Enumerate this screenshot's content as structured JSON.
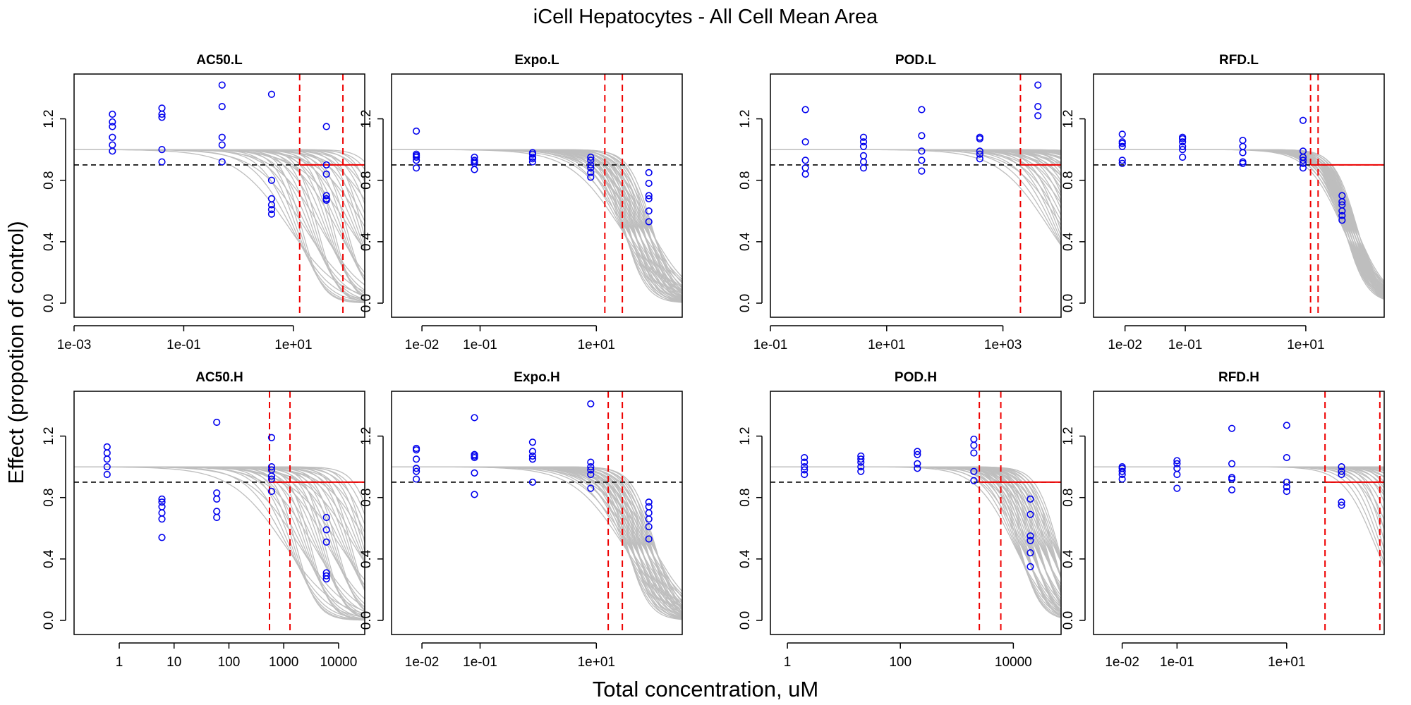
{
  "title": "iCell Hepatocytes -  All Cell Mean Area",
  "xlabel": "Total concentration, uM",
  "ylabel": "Effect (propotion of control)",
  "colors": {
    "points": "#0000ee",
    "curves": "#bebebe",
    "threshold": "#000000",
    "estimate": "#ee0000"
  },
  "chart_data": [
    {
      "type": "scatter",
      "panel": "AC50.L",
      "title": "AC50.L",
      "x_scale": "log",
      "xlim": [
        0.001,
        200
      ],
      "ylim": [
        0,
        1.4
      ],
      "x_ticks": [
        0.001,
        0.1,
        10
      ],
      "x_tick_labels": [
        "1e-03",
        "1e-01",
        "1e+01"
      ],
      "y_ticks": [
        0,
        0.4,
        0.8,
        1.2
      ],
      "y_tick_labels": [
        "0.0",
        "0.4",
        "0.8",
        "1.2"
      ],
      "threshold": 0.9,
      "vlines": [
        13,
        80
      ],
      "hline_from": 13,
      "curves": {
        "lo": [
          8,
          0.9
        ],
        "hi": [
          600,
          2.5
        ]
      },
      "points": [
        {
          "x": 0.005,
          "y": [
            0.99,
            1.03,
            1.08,
            1.15,
            1.18,
            1.23
          ]
        },
        {
          "x": 0.04,
          "y": [
            0.92,
            1.0,
            1.21,
            1.23,
            1.27
          ]
        },
        {
          "x": 0.5,
          "y": [
            0.92,
            1.03,
            1.08,
            1.28,
            1.42
          ]
        },
        {
          "x": 4,
          "y": [
            0.58,
            0.61,
            0.64,
            0.68,
            0.8,
            1.36
          ]
        },
        {
          "x": 40,
          "y": [
            0.67,
            0.68,
            0.7,
            0.84,
            0.9,
            1.15
          ]
        }
      ]
    },
    {
      "type": "scatter",
      "panel": "Expo.L",
      "title": "Expo.L",
      "x_scale": "log",
      "xlim": [
        0.003,
        300
      ],
      "ylim": [
        0,
        1.4
      ],
      "x_ticks": [
        0.01,
        0.1,
        10
      ],
      "x_tick_labels": [
        "1e-02",
        "1e-01",
        "1e+01"
      ],
      "y_ticks": [
        0,
        0.4,
        0.8,
        1.2
      ],
      "y_tick_labels": [
        "0.0",
        "0.4",
        "0.8",
        "1.2"
      ],
      "threshold": 0.9,
      "vlines": [
        14,
        28
      ],
      "hline_from": null,
      "curves": {
        "lo": [
          25,
          1.0
        ],
        "hi": [
          90,
          2.5
        ]
      },
      "points": [
        {
          "x": 0.008,
          "y": [
            0.88,
            0.93,
            0.95,
            0.96,
            0.97,
            1.12
          ]
        },
        {
          "x": 0.08,
          "y": [
            0.87,
            0.91,
            0.92,
            0.93,
            0.95
          ]
        },
        {
          "x": 0.8,
          "y": [
            0.92,
            0.94,
            0.95,
            0.97,
            0.98
          ]
        },
        {
          "x": 8,
          "y": [
            0.82,
            0.85,
            0.88,
            0.9,
            0.93,
            0.95
          ]
        },
        {
          "x": 80,
          "y": [
            0.53,
            0.6,
            0.68,
            0.7,
            0.78,
            0.85
          ]
        }
      ]
    },
    {
      "type": "scatter",
      "panel": "POD.L",
      "title": "POD.L",
      "x_scale": "log",
      "xlim": [
        0.1,
        10000
      ],
      "ylim": [
        0,
        1.4
      ],
      "x_ticks": [
        0.1,
        10,
        1000
      ],
      "x_tick_labels": [
        "1e-01",
        "1e+01",
        "1e+03"
      ],
      "y_ticks": [
        0,
        0.4,
        0.8,
        1.2
      ],
      "y_tick_labels": [
        "0.0",
        "0.4",
        "0.8",
        "1.2"
      ],
      "threshold": 0.9,
      "vlines": [
        2000
      ],
      "hline_from": 2000,
      "curves": {
        "lo": [
          6000,
          1.0
        ],
        "hi": [
          200000,
          2.0
        ]
      },
      "points": [
        {
          "x": 0.4,
          "y": [
            0.84,
            0.88,
            0.93,
            1.05,
            1.26
          ]
        },
        {
          "x": 4,
          "y": [
            0.88,
            0.92,
            0.96,
            1.02,
            1.05,
            1.08
          ]
        },
        {
          "x": 40,
          "y": [
            0.86,
            0.93,
            0.99,
            1.09,
            1.26
          ]
        },
        {
          "x": 400,
          "y": [
            0.94,
            0.97,
            0.99,
            1.07,
            1.08
          ]
        },
        {
          "x": 4000,
          "y": [
            1.22,
            1.28,
            1.42
          ]
        }
      ]
    },
    {
      "type": "scatter",
      "panel": "RFD.L",
      "title": "RFD.L",
      "x_scale": "log",
      "xlim": [
        0.003,
        200
      ],
      "ylim": [
        0,
        1.4
      ],
      "x_ticks": [
        0.01,
        0.1,
        10
      ],
      "x_tick_labels": [
        "1e-02",
        "1e-01",
        "1e+01"
      ],
      "y_ticks": [
        0,
        0.4,
        0.8,
        1.2
      ],
      "y_tick_labels": [
        "0.0",
        "0.4",
        "0.8",
        "1.2"
      ],
      "threshold": 0.9,
      "vlines": [
        12,
        16
      ],
      "hline_from": 12,
      "curves": {
        "lo": [
          40,
          1.5
        ],
        "hi": [
          70,
          2.5
        ]
      },
      "points": [
        {
          "x": 0.009,
          "y": [
            0.91,
            0.93,
            1.02,
            1.04,
            1.05,
            1.1
          ]
        },
        {
          "x": 0.09,
          "y": [
            0.95,
            1.0,
            1.02,
            1.05,
            1.07,
            1.08
          ]
        },
        {
          "x": 0.9,
          "y": [
            0.91,
            0.92,
            0.98,
            1.02,
            1.06
          ]
        },
        {
          "x": 9,
          "y": [
            0.88,
            0.91,
            0.93,
            0.95,
            0.99,
            1.19
          ]
        },
        {
          "x": 40,
          "y": [
            0.54,
            0.57,
            0.6,
            0.64,
            0.66,
            0.7
          ]
        }
      ]
    },
    {
      "type": "scatter",
      "panel": "AC50.H",
      "title": "AC50.H",
      "x_scale": "log",
      "xlim": [
        0.15,
        30000
      ],
      "ylim": [
        0,
        1.4
      ],
      "x_ticks": [
        1,
        10,
        100,
        1000,
        10000
      ],
      "x_tick_labels": [
        "1",
        "10",
        "100",
        "1000",
        "10000"
      ],
      "y_ticks": [
        0,
        0.4,
        0.8,
        1.2
      ],
      "y_tick_labels": [
        "0.0",
        "0.4",
        "0.8",
        "1.2"
      ],
      "threshold": 0.9,
      "vlines": [
        550,
        1300
      ],
      "hline_from": 550,
      "curves": {
        "lo": [
          1000,
          0.9
        ],
        "hi": [
          50000,
          2.5
        ]
      },
      "points": [
        {
          "x": 0.6,
          "y": [
            0.95,
            1.0,
            1.05,
            1.09,
            1.13
          ]
        },
        {
          "x": 6,
          "y": [
            0.54,
            0.66,
            0.7,
            0.74,
            0.77,
            0.79
          ]
        },
        {
          "x": 60,
          "y": [
            0.67,
            0.71,
            0.79,
            0.83,
            1.29
          ]
        },
        {
          "x": 600,
          "y": [
            0.84,
            0.92,
            0.94,
            0.98,
            1.0,
            1.19
          ]
        },
        {
          "x": 6000,
          "y": [
            0.27,
            0.29,
            0.31,
            0.51,
            0.59,
            0.67
          ]
        }
      ]
    },
    {
      "type": "scatter",
      "panel": "Expo.H",
      "title": "Expo.H",
      "x_scale": "log",
      "xlim": [
        0.003,
        300
      ],
      "ylim": [
        0,
        1.4
      ],
      "x_ticks": [
        0.01,
        0.1,
        10
      ],
      "x_tick_labels": [
        "1e-02",
        "1e-01",
        "1e+01"
      ],
      "y_ticks": [
        0,
        0.4,
        0.8,
        1.2
      ],
      "y_tick_labels": [
        "0.0",
        "0.4",
        "0.8",
        "1.2"
      ],
      "threshold": 0.9,
      "vlines": [
        16,
        28
      ],
      "hline_from": null,
      "curves": {
        "lo": [
          28,
          1.0
        ],
        "hi": [
          100,
          2.5
        ]
      },
      "points": [
        {
          "x": 0.008,
          "y": [
            0.92,
            0.97,
            0.99,
            1.05,
            1.11,
            1.12
          ]
        },
        {
          "x": 0.08,
          "y": [
            0.82,
            0.96,
            1.06,
            1.07,
            1.08,
            1.32
          ]
        },
        {
          "x": 0.8,
          "y": [
            0.9,
            1.05,
            1.07,
            1.1,
            1.16
          ]
        },
        {
          "x": 8,
          "y": [
            0.86,
            0.95,
            0.98,
            1.0,
            1.03,
            1.41
          ]
        },
        {
          "x": 80,
          "y": [
            0.53,
            0.61,
            0.66,
            0.7,
            0.74,
            0.77
          ]
        }
      ]
    },
    {
      "type": "scatter",
      "panel": "POD.H",
      "title": "POD.H",
      "x_scale": "log",
      "xlim": [
        0.5,
        70000
      ],
      "ylim": [
        0,
        1.4
      ],
      "x_ticks": [
        1,
        100,
        10000
      ],
      "x_tick_labels": [
        "1",
        "100",
        "10000"
      ],
      "y_ticks": [
        0,
        0.4,
        0.8,
        1.2
      ],
      "y_tick_labels": [
        "0.0",
        "0.4",
        "0.8",
        "1.2"
      ],
      "threshold": 0.9,
      "vlines": [
        2500,
        6000
      ],
      "hline_from": 2500,
      "curves": {
        "lo": [
          10000,
          1.3
        ],
        "hi": [
          60000,
          2.5
        ]
      },
      "points": [
        {
          "x": 2,
          "y": [
            0.95,
            0.98,
            1.0,
            1.03,
            1.06
          ]
        },
        {
          "x": 20,
          "y": [
            0.97,
            1.0,
            1.03,
            1.05,
            1.07
          ]
        },
        {
          "x": 200,
          "y": [
            0.99,
            1.02,
            1.08,
            1.1
          ]
        },
        {
          "x": 2000,
          "y": [
            0.91,
            0.97,
            1.09,
            1.14,
            1.18
          ]
        },
        {
          "x": 20000,
          "y": [
            0.35,
            0.44,
            0.52,
            0.55,
            0.69,
            0.79
          ]
        }
      ]
    },
    {
      "type": "scatter",
      "panel": "RFD.H",
      "title": "RFD.H",
      "x_scale": "log",
      "xlim": [
        0.003,
        600
      ],
      "ylim": [
        0,
        1.4
      ],
      "x_ticks": [
        0.01,
        0.1,
        10
      ],
      "x_tick_labels": [
        "1e-02",
        "1e-01",
        "1e+01"
      ],
      "y_ticks": [
        0,
        0.4,
        0.8,
        1.2
      ],
      "y_tick_labels": [
        "0.0",
        "0.4",
        "0.8",
        "1.2"
      ],
      "threshold": 0.9,
      "vlines": [
        50,
        500
      ],
      "hline_from": 50,
      "curves": {
        "lo": [
          400,
          1.5
        ],
        "hi": [
          30000,
          2.5
        ]
      },
      "points": [
        {
          "x": 0.01,
          "y": [
            0.92,
            0.95,
            0.97,
            0.99,
            1.0
          ]
        },
        {
          "x": 0.1,
          "y": [
            0.86,
            0.95,
            0.99,
            1.02,
            1.04
          ]
        },
        {
          "x": 1,
          "y": [
            0.85,
            0.92,
            0.93,
            1.02,
            1.25
          ]
        },
        {
          "x": 10,
          "y": [
            0.84,
            0.87,
            0.9,
            1.06,
            1.27
          ]
        },
        {
          "x": 100,
          "y": [
            0.75,
            0.77,
            0.95,
            0.97,
            1.0
          ]
        }
      ]
    }
  ]
}
